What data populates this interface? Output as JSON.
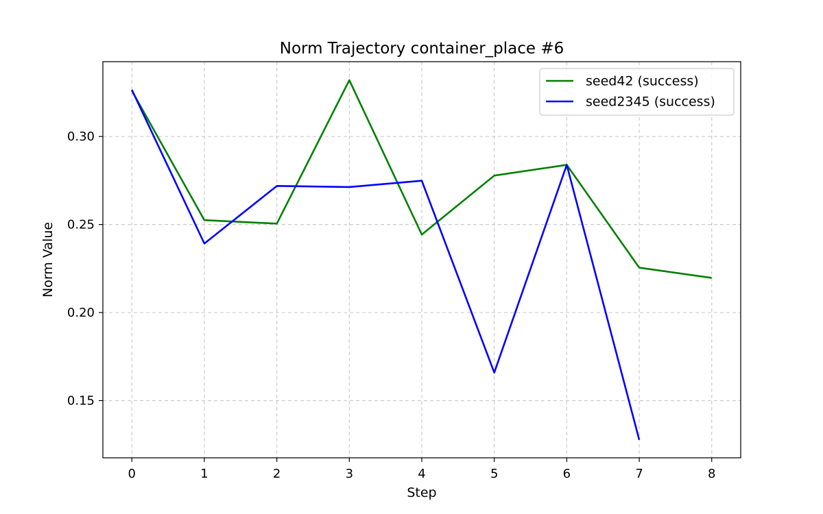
{
  "chart_data": {
    "type": "line",
    "title": "Norm Trajectory container_place #6",
    "xlabel": "Step",
    "ylabel": "Norm Value",
    "xlim": [
      -0.4,
      8.4
    ],
    "ylim": [
      0.1175,
      0.3425
    ],
    "x_ticks": [
      0,
      1,
      2,
      3,
      4,
      5,
      6,
      7,
      8
    ],
    "y_ticks": [
      0.15,
      0.2,
      0.25,
      0.3
    ],
    "y_tick_labels": [
      "0.15",
      "0.20",
      "0.25",
      "0.30"
    ],
    "grid": true,
    "legend_position": "top-right",
    "series": [
      {
        "name": "seed42 (success)",
        "color": "#008000",
        "x": [
          0,
          1,
          2,
          3,
          4,
          5,
          6,
          7,
          8
        ],
        "values": [
          0.326,
          0.2525,
          0.2505,
          0.332,
          0.2443,
          0.2778,
          0.2839,
          0.2255,
          0.2197
        ]
      },
      {
        "name": "seed2345 (success)",
        "color": "#0000ff",
        "x": [
          0,
          1,
          2,
          3,
          4,
          5,
          6,
          7
        ],
        "values": [
          0.3265,
          0.2392,
          0.2719,
          0.2713,
          0.2749,
          0.1659,
          0.2839,
          0.1277
        ]
      }
    ]
  }
}
